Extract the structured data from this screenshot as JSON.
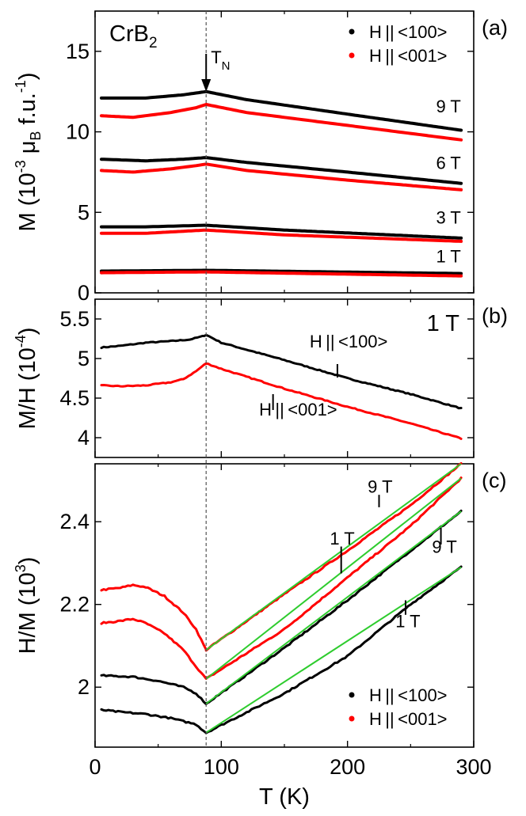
{
  "figure": {
    "t_marker": 88,
    "marker_label": {
      "main": "T",
      "sub": "N"
    },
    "xlabel": "T (K)",
    "xlim": [
      0,
      300
    ],
    "xticks": [
      0,
      100,
      200,
      300
    ]
  },
  "colors": {
    "h100": "#000000",
    "h001": "#ff0000",
    "fit": "#2ecc2e",
    "dashed": "#555555"
  },
  "chart_data": [
    {
      "type": "line",
      "panel": "(a)",
      "sample": {
        "main": "CrB",
        "sub": "2"
      },
      "ylabel": {
        "pre": "M (10",
        "exp1": "-3",
        "mid": " μ",
        "sub": "B",
        "post": " f.u.",
        "exp2": "-1",
        "close": ")"
      },
      "ylim": [
        0,
        17.5
      ],
      "yticks": [
        0,
        5,
        10,
        15
      ],
      "legend": {
        "placement": "top-right",
        "entries": [
          "H||<100>",
          "H||<001>"
        ]
      },
      "field_labels": [
        {
          "text": "9 T",
          "x": 280,
          "y": 11.2
        },
        {
          "text": "6 T",
          "x": 280,
          "y": 7.7
        },
        {
          "text": "3 T",
          "x": 280,
          "y": 4.3
        },
        {
          "text": "1 T",
          "x": 280,
          "y": 1.9
        }
      ],
      "series": [
        {
          "name": "H||<100>",
          "field": "9 T",
          "x": [
            5,
            40,
            70,
            88,
            120,
            200,
            290
          ],
          "y": [
            12.1,
            12.1,
            12.3,
            12.5,
            12.0,
            11.1,
            10.1
          ]
        },
        {
          "name": "H||<001>",
          "field": "9 T",
          "x": [
            5,
            30,
            60,
            80,
            88,
            120,
            200,
            290
          ],
          "y": [
            11.0,
            10.9,
            11.2,
            11.5,
            11.7,
            11.2,
            10.4,
            9.5
          ]
        },
        {
          "name": "H||<100>",
          "field": "6 T",
          "x": [
            5,
            40,
            70,
            88,
            120,
            200,
            290
          ],
          "y": [
            8.3,
            8.2,
            8.3,
            8.4,
            8.1,
            7.5,
            6.8
          ]
        },
        {
          "name": "H||<001>",
          "field": "6 T",
          "x": [
            5,
            30,
            60,
            80,
            88,
            120,
            200,
            290
          ],
          "y": [
            7.6,
            7.5,
            7.7,
            7.9,
            8.0,
            7.6,
            7.0,
            6.4
          ]
        },
        {
          "name": "H||<100>",
          "field": "3 T",
          "x": [
            5,
            40,
            88,
            150,
            290
          ],
          "y": [
            4.1,
            4.1,
            4.2,
            3.9,
            3.4
          ]
        },
        {
          "name": "H||<001>",
          "field": "3 T",
          "x": [
            5,
            40,
            88,
            150,
            290
          ],
          "y": [
            3.7,
            3.7,
            3.9,
            3.6,
            3.2
          ]
        },
        {
          "name": "H||<100>",
          "field": "1 T",
          "x": [
            5,
            88,
            290
          ],
          "y": [
            1.35,
            1.4,
            1.2
          ]
        },
        {
          "name": "H||<001>",
          "field": "1 T",
          "x": [
            5,
            88,
            290
          ],
          "y": [
            1.25,
            1.3,
            1.05
          ]
        }
      ]
    },
    {
      "type": "line",
      "panel": "(b)",
      "field": "1 T",
      "ylabel": {
        "pre": "M/H (10",
        "exp": "-4",
        "close": ")"
      },
      "ylim": [
        3.75,
        5.75
      ],
      "yticks": [
        4.0,
        4.5,
        5.0,
        5.5
      ],
      "annotations": [
        {
          "text": "H||<100>",
          "x": 170,
          "y": 5.14,
          "tick_x": 192,
          "tick_y1": 4.93,
          "tick_y2": 4.76
        },
        {
          "text": "H||<001>",
          "x": 130,
          "y": 4.28,
          "tick_x": 141,
          "tick_y1": 4.55,
          "tick_y2": 4.35
        }
      ],
      "series": [
        {
          "name": "H||<100>",
          "x": [
            5,
            20,
            40,
            60,
            75,
            85,
            88,
            100,
            150,
            200,
            250,
            290
          ],
          "y": [
            5.14,
            5.16,
            5.2,
            5.22,
            5.24,
            5.28,
            5.3,
            5.2,
            4.98,
            4.75,
            4.55,
            4.37
          ]
        },
        {
          "name": "H||<001>",
          "x": [
            5,
            20,
            40,
            60,
            70,
            80,
            88,
            100,
            150,
            200,
            250,
            290
          ],
          "y": [
            4.66,
            4.65,
            4.66,
            4.7,
            4.74,
            4.84,
            4.94,
            4.87,
            4.62,
            4.39,
            4.18,
            3.99
          ]
        }
      ]
    },
    {
      "type": "line",
      "panel": "(c)",
      "ylabel": {
        "pre": "H/M (10",
        "exp": "3",
        "close": ")"
      },
      "ylim": [
        1.855,
        2.54
      ],
      "yticks": [
        2.0,
        2.2,
        2.4
      ],
      "legend": {
        "placement": "bottom-right",
        "entries": [
          "H||<100>",
          "H||<001>"
        ]
      },
      "annotations": [
        {
          "text": "9 T",
          "x": 216,
          "y": 2.47,
          "tick_x": 225,
          "tick_y1": 2.465,
          "tick_y2": 2.435
        },
        {
          "text": "1 T",
          "x": 186,
          "y": 2.345,
          "tick_x": 195,
          "tick_y1": 2.34,
          "tick_y2": 2.275
        },
        {
          "text": "9 T",
          "x": 267,
          "y": 2.325,
          "tick_x": 274,
          "tick_y1": 2.385,
          "tick_y2": 2.345
        },
        {
          "text": "1 T",
          "x": 238,
          "y": 2.145,
          "tick_x": 246,
          "tick_y1": 2.21,
          "tick_y2": 2.175
        }
      ],
      "series": [
        {
          "name": "H||<001>",
          "field": "9 T",
          "x": [
            5,
            20,
            30,
            40,
            55,
            70,
            80,
            88
          ],
          "y": [
            2.235,
            2.24,
            2.247,
            2.242,
            2.22,
            2.18,
            2.14,
            2.09
          ]
        },
        {
          "name": "H||<001>",
          "field": "9 T",
          "x": [
            88,
            150,
            200,
            250,
            290
          ],
          "y": [
            2.09,
            2.225,
            2.33,
            2.44,
            2.54
          ]
        },
        {
          "name": "H||<001>",
          "field": "1 T",
          "x": [
            5,
            20,
            30,
            40,
            55,
            70,
            80,
            88
          ],
          "y": [
            2.155,
            2.16,
            2.165,
            2.155,
            2.13,
            2.09,
            2.05,
            2.02
          ]
        },
        {
          "name": "H||<001>",
          "field": "1 T",
          "x": [
            88,
            150,
            200,
            250,
            290
          ],
          "y": [
            2.02,
            2.14,
            2.265,
            2.39,
            2.505
          ]
        },
        {
          "name": "H||<100>",
          "field": "9 T",
          "x": [
            5,
            30,
            50,
            70,
            80,
            88
          ],
          "y": [
            2.028,
            2.025,
            2.015,
            2.0,
            1.985,
            1.96
          ]
        },
        {
          "name": "H||<100>",
          "field": "9 T",
          "x": [
            88,
            150,
            200,
            250,
            290
          ],
          "y": [
            1.96,
            2.095,
            2.21,
            2.33,
            2.425
          ]
        },
        {
          "name": "H||<100>",
          "field": "1 T",
          "x": [
            5,
            20,
            40,
            60,
            80,
            88
          ],
          "y": [
            1.945,
            1.94,
            1.935,
            1.925,
            1.91,
            1.89
          ]
        },
        {
          "name": "H||<100>",
          "field": "1 T",
          "x": [
            88,
            150,
            200,
            250,
            290
          ],
          "y": [
            1.89,
            1.985,
            2.075,
            2.2,
            2.29
          ]
        }
      ]
    }
  ]
}
